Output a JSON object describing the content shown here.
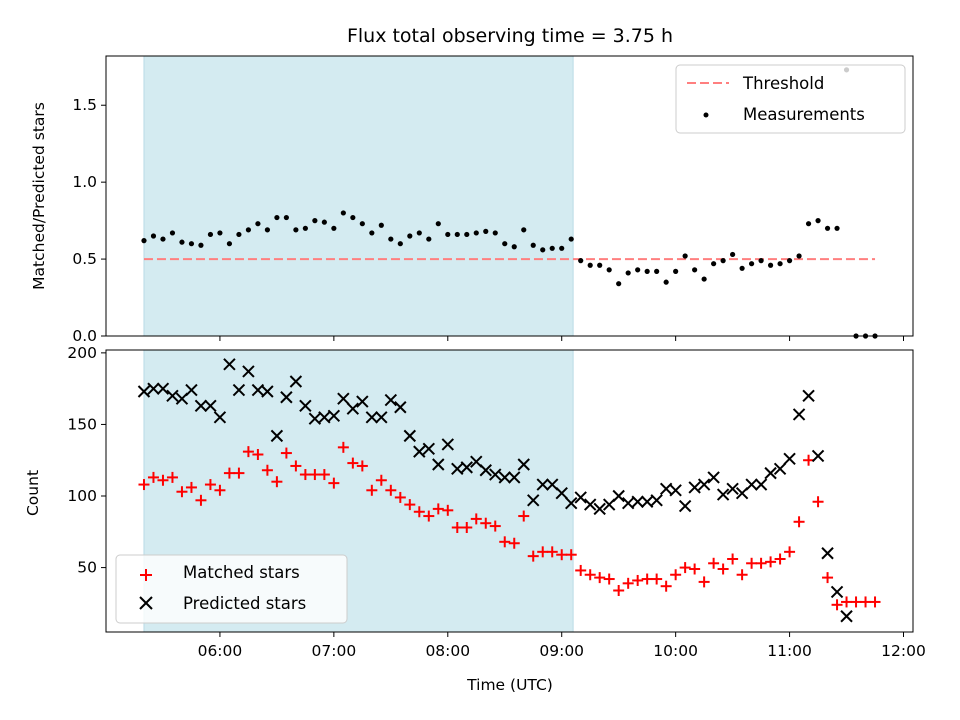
{
  "chart_data": [
    {
      "type": "scatter",
      "title": "Flux total observing time = 3.75 h",
      "xlabel": "",
      "ylabel": "Matched/Predicted stars",
      "ylim": [
        0,
        1.82
      ],
      "yticks": [
        "0.0",
        "0.5",
        "1.0",
        "1.5"
      ],
      "shaded_span": [
        "05:20",
        "09:06"
      ],
      "shaded_color": "#d4ebf1",
      "legend_position": "upper right",
      "series": [
        {
          "name": "Threshold",
          "kind": "dashed-line",
          "color": "#ff7f7f",
          "x": [
            "05:20",
            "11:45"
          ],
          "y": [
            0.5,
            0.5
          ]
        },
        {
          "name": "Measurements",
          "kind": "dot",
          "color": "#000000",
          "x": [
            "05:20",
            "05:25",
            "05:30",
            "05:35",
            "05:40",
            "05:45",
            "05:50",
            "05:55",
            "06:00",
            "06:05",
            "06:10",
            "06:15",
            "06:20",
            "06:25",
            "06:30",
            "06:35",
            "06:40",
            "06:45",
            "06:50",
            "06:55",
            "07:00",
            "07:05",
            "07:10",
            "07:15",
            "07:20",
            "07:25",
            "07:30",
            "07:35",
            "07:40",
            "07:45",
            "07:50",
            "07:55",
            "08:00",
            "08:05",
            "08:10",
            "08:15",
            "08:20",
            "08:25",
            "08:30",
            "08:35",
            "08:40",
            "08:45",
            "08:50",
            "08:55",
            "09:00",
            "09:05",
            "09:10",
            "09:15",
            "09:20",
            "09:25",
            "09:30",
            "09:35",
            "09:40",
            "09:45",
            "09:50",
            "09:55",
            "10:00",
            "10:05",
            "10:10",
            "10:15",
            "10:20",
            "10:25",
            "10:30",
            "10:35",
            "10:40",
            "10:45",
            "10:50",
            "10:55",
            "11:00",
            "11:05",
            "11:10",
            "11:15",
            "11:20",
            "11:25",
            "11:30",
            "11:35",
            "11:40",
            "11:45"
          ],
          "y": [
            0.62,
            0.65,
            0.63,
            0.67,
            0.61,
            0.6,
            0.59,
            0.66,
            0.67,
            0.6,
            0.66,
            0.69,
            0.73,
            0.69,
            0.77,
            0.77,
            0.69,
            0.7,
            0.75,
            0.74,
            0.7,
            0.8,
            0.77,
            0.73,
            0.67,
            0.72,
            0.63,
            0.6,
            0.65,
            0.67,
            0.63,
            0.73,
            0.66,
            0.66,
            0.66,
            0.67,
            0.68,
            0.67,
            0.6,
            0.58,
            0.69,
            0.59,
            0.56,
            0.57,
            0.57,
            0.63,
            0.49,
            0.46,
            0.46,
            0.43,
            0.34,
            0.41,
            0.43,
            0.42,
            0.42,
            0.35,
            0.42,
            0.52,
            0.43,
            0.37,
            0.47,
            0.49,
            0.53,
            0.44,
            0.47,
            0.49,
            0.46,
            0.47,
            0.49,
            0.52,
            0.73,
            0.75,
            0.7,
            0.7,
            1.73,
            0.0,
            0.0,
            0.0
          ]
        }
      ]
    },
    {
      "type": "scatter",
      "title": "",
      "xlabel": "Time (UTC)",
      "ylabel": "Count",
      "xlim": [
        "05:00",
        "12:05"
      ],
      "xticks": [
        "06:00",
        "07:00",
        "08:00",
        "09:00",
        "10:00",
        "11:00",
        "12:00"
      ],
      "ylim": [
        5,
        202
      ],
      "yticks": [
        "50",
        "100",
        "150",
        "200"
      ],
      "shaded_span": [
        "05:20",
        "09:06"
      ],
      "shaded_color": "#d4ebf1",
      "legend_position": "lower left",
      "series": [
        {
          "name": "Matched stars",
          "kind": "plus",
          "color": "#ff0000",
          "x": [
            "05:20",
            "05:25",
            "05:30",
            "05:35",
            "05:40",
            "05:45",
            "05:50",
            "05:55",
            "06:00",
            "06:05",
            "06:10",
            "06:15",
            "06:20",
            "06:25",
            "06:30",
            "06:35",
            "06:40",
            "06:45",
            "06:50",
            "06:55",
            "07:00",
            "07:05",
            "07:10",
            "07:15",
            "07:20",
            "07:25",
            "07:30",
            "07:35",
            "07:40",
            "07:45",
            "07:50",
            "07:55",
            "08:00",
            "08:05",
            "08:10",
            "08:15",
            "08:20",
            "08:25",
            "08:30",
            "08:35",
            "08:40",
            "08:45",
            "08:50",
            "08:55",
            "09:00",
            "09:05",
            "09:10",
            "09:15",
            "09:20",
            "09:25",
            "09:30",
            "09:35",
            "09:40",
            "09:45",
            "09:50",
            "09:55",
            "10:00",
            "10:05",
            "10:10",
            "10:15",
            "10:20",
            "10:25",
            "10:30",
            "10:35",
            "10:40",
            "10:45",
            "10:50",
            "10:55",
            "11:00",
            "11:05",
            "11:10",
            "11:15",
            "11:20",
            "11:25",
            "11:30",
            "11:35",
            "11:40",
            "11:45"
          ],
          "y": [
            108,
            113,
            111,
            113,
            103,
            106,
            97,
            108,
            104,
            116,
            116,
            131,
            129,
            118,
            110,
            130,
            121,
            115,
            115,
            115,
            109,
            134,
            123,
            121,
            104,
            111,
            104,
            99,
            94,
            89,
            86,
            91,
            90,
            78,
            78,
            84,
            81,
            79,
            68,
            67,
            86,
            58,
            61,
            61,
            59,
            59,
            48,
            45,
            43,
            42,
            34,
            39,
            41,
            42,
            42,
            37,
            45,
            50,
            49,
            40,
            53,
            49,
            56,
            45,
            53,
            53,
            54,
            56,
            61,
            82,
            125,
            96,
            43,
            24,
            26,
            26,
            26,
            26
          ]
        },
        {
          "name": "Predicted stars",
          "kind": "x",
          "color": "#000000",
          "x": [
            "05:20",
            "05:25",
            "05:30",
            "05:35",
            "05:40",
            "05:45",
            "05:50",
            "05:55",
            "06:00",
            "06:05",
            "06:10",
            "06:15",
            "06:20",
            "06:25",
            "06:30",
            "06:35",
            "06:40",
            "06:45",
            "06:50",
            "06:55",
            "07:00",
            "07:05",
            "07:10",
            "07:15",
            "07:20",
            "07:25",
            "07:30",
            "07:35",
            "07:40",
            "07:45",
            "07:50",
            "07:55",
            "08:00",
            "08:05",
            "08:10",
            "08:15",
            "08:20",
            "08:25",
            "08:30",
            "08:35",
            "08:40",
            "08:45",
            "08:50",
            "08:55",
            "09:00",
            "09:05",
            "09:10",
            "09:15",
            "09:20",
            "09:25",
            "09:30",
            "09:35",
            "09:40",
            "09:45",
            "09:50",
            "09:55",
            "10:00",
            "10:05",
            "10:10",
            "10:15",
            "10:20",
            "10:25",
            "10:30",
            "10:35",
            "10:40",
            "10:45",
            "10:50",
            "10:55",
            "11:00",
            "11:05",
            "11:10",
            "11:15",
            "11:20",
            "11:25",
            "11:30"
          ],
          "y": [
            173,
            175,
            175,
            170,
            168,
            174,
            163,
            163,
            155,
            192,
            174,
            187,
            174,
            173,
            142,
            169,
            180,
            163,
            154,
            155,
            156,
            168,
            161,
            166,
            155,
            155,
            167,
            162,
            142,
            131,
            133,
            122,
            136,
            119,
            120,
            124,
            118,
            115,
            113,
            113,
            122,
            97,
            108,
            108,
            102,
            95,
            99,
            94,
            91,
            94,
            100,
            95,
            96,
            96,
            97,
            105,
            104,
            93,
            106,
            108,
            113,
            101,
            105,
            102,
            108,
            108,
            116,
            119,
            126,
            157,
            170,
            128,
            60,
            33,
            16
          ]
        }
      ]
    }
  ]
}
